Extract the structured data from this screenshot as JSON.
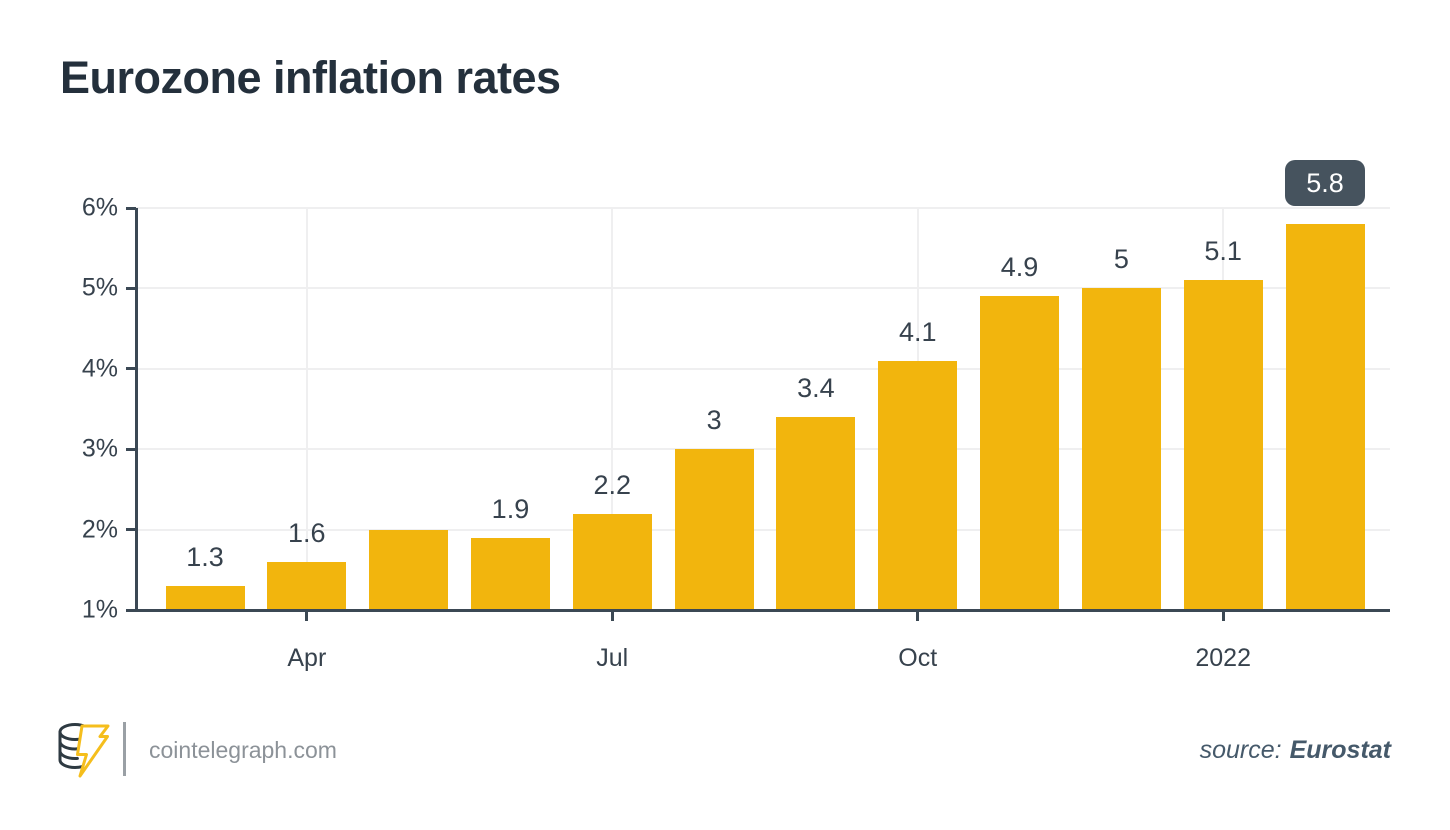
{
  "title": "Eurozone inflation rates",
  "footer": {
    "brand": "cointelegraph.com",
    "source_prefix": "source:",
    "source_name": "Eurostat"
  },
  "colors": {
    "background": "#FFFFFF",
    "title": "#24303C",
    "bar": "#F2B50D",
    "badge_bg": "#46535E",
    "badge_text": "#FFFFFF",
    "axis": "#3B4854",
    "grid": "#EFEFF0",
    "tick_label": "#37424D",
    "value_label": "#37424D",
    "brand_text": "#8C9298",
    "divider": "#9AA0A5",
    "source_text": "#45596A",
    "logo_coin": "#2E3A42",
    "logo_bolt": "#F5BE1C"
  },
  "chart_data": {
    "type": "bar",
    "title": "Eurozone inflation rates",
    "values": [
      1.3,
      1.6,
      2,
      1.9,
      2.2,
      3,
      3.4,
      4.1,
      4.9,
      5,
      5.1,
      5.8
    ],
    "bar_labels": [
      "1.3",
      "1.6",
      "",
      "1.9",
      "2.2",
      "3",
      "3.4",
      "4.1",
      "4.9",
      "5",
      "5.1",
      "5.8"
    ],
    "last_value_badge": "5.8",
    "y_ticks": [
      "1%",
      "2%",
      "3%",
      "4%",
      "5%",
      "6%"
    ],
    "ylim": [
      1,
      6
    ],
    "x_ticks": [
      {
        "label": "Apr",
        "bar_index": 1
      },
      {
        "label": "Jul",
        "bar_index": 4
      },
      {
        "label": "Oct",
        "bar_index": 7
      },
      {
        "label": "2022",
        "bar_index": 10
      }
    ],
    "grid": "horizontal lines each 1% plus vertical lines at x ticks",
    "legend": "none",
    "xlabel": "",
    "ylabel": ""
  }
}
